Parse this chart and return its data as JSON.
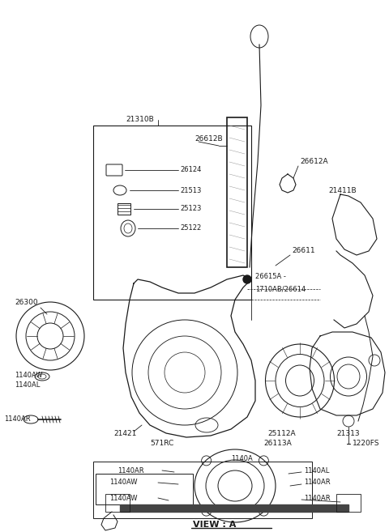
{
  "bg_color": "#ffffff",
  "line_color": "#1a1a1a",
  "fig_width": 4.8,
  "fig_height": 6.57,
  "dpi": 100,
  "xlim": [
    0,
    480
  ],
  "ylim": [
    0,
    657
  ]
}
